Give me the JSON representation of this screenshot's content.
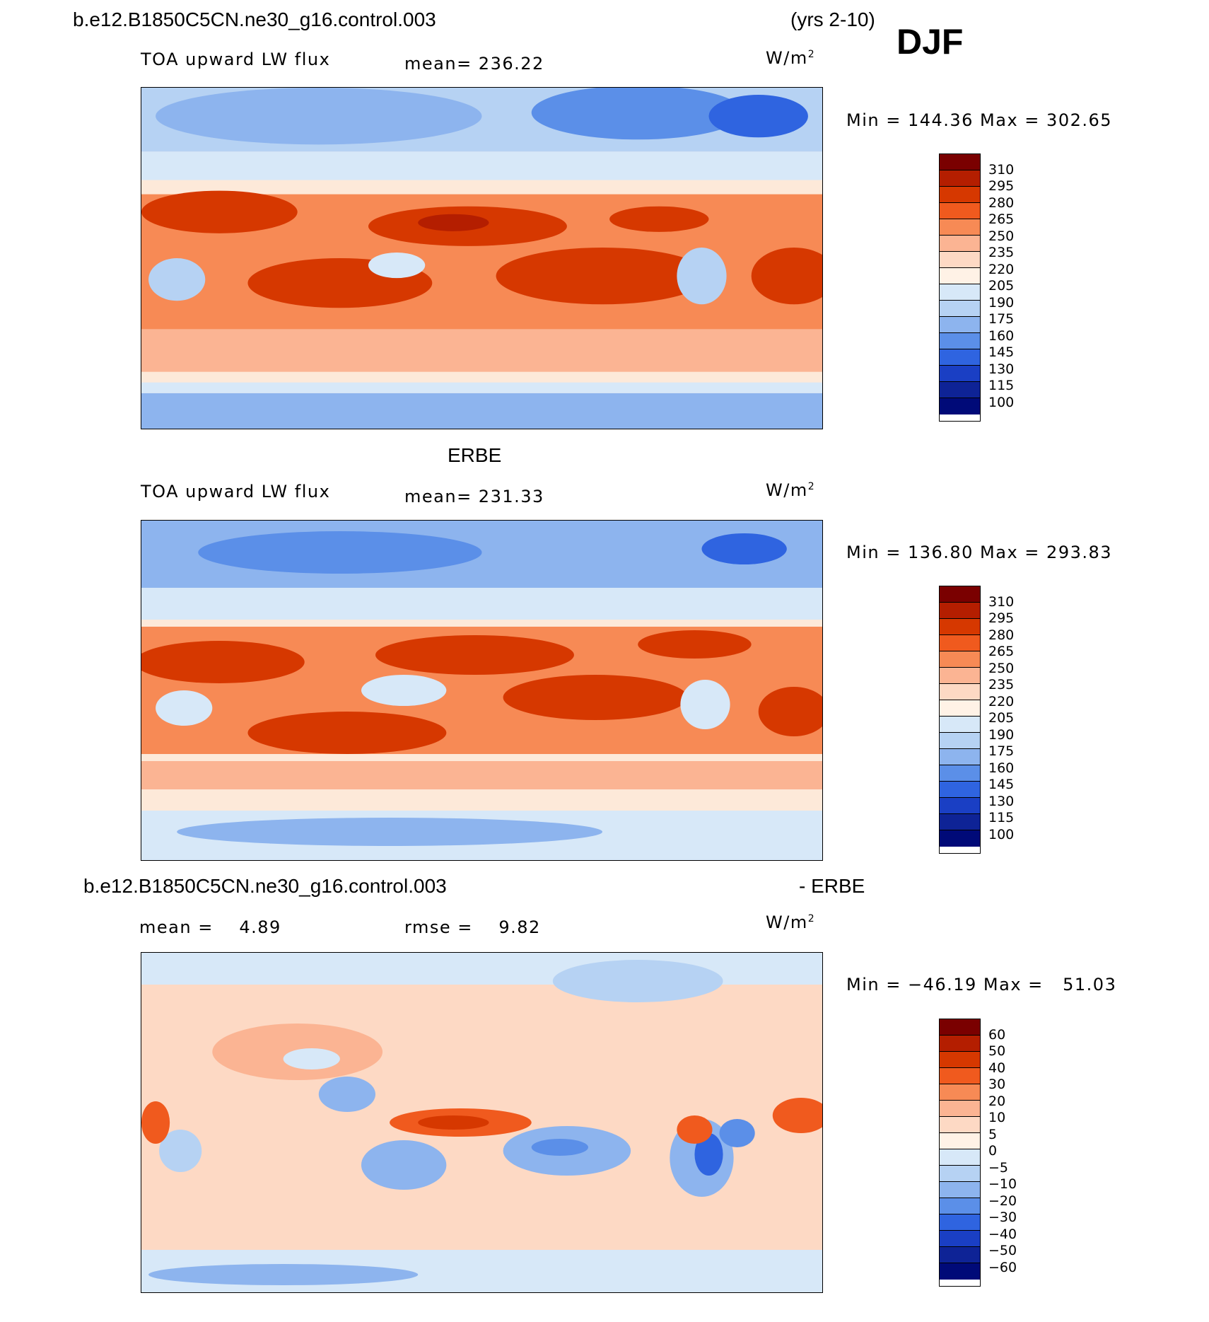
{
  "header": {
    "case_name": "b.e12.B1850C5CN.ne30_g16.control.003",
    "years": "(yrs 2-10)",
    "season": "DJF"
  },
  "panels": [
    {
      "title": "",
      "variable": "TOA upward LW flux",
      "stat1": "mean= 236.22",
      "stat2": "",
      "units": "W/m",
      "units_sup": "2",
      "minmax": "Min = 144.36 Max = 302.65"
    },
    {
      "title": "ERBE",
      "variable": "TOA upward LW flux",
      "stat1": "mean= 231.33",
      "stat2": "",
      "units": "W/m",
      "units_sup": "2",
      "minmax": "Min = 136.80 Max = 293.83"
    },
    {
      "title": "b.e12.B1850C5CN.ne30_g16.control.003",
      "title_right": "- ERBE",
      "variable": "",
      "stat1": "mean =    4.89",
      "stat2": "rmse =    9.82",
      "units": "W/m",
      "units_sup": "2",
      "minmax": "Min = −46.19 Max =   51.03"
    }
  ],
  "colorbar_abs": {
    "levels": [
      "310",
      "295",
      "280",
      "265",
      "250",
      "235",
      "220",
      "205",
      "190",
      "175",
      "160",
      "145",
      "130",
      "115",
      "100"
    ],
    "colors": [
      "#7a0000",
      "#b41e00",
      "#d63800",
      "#f05a1e",
      "#f78a55",
      "#fbb493",
      "#fdd9c4",
      "#fff2e6",
      "#d7e8f8",
      "#b6d2f3",
      "#8db4ee",
      "#5b8fe8",
      "#2f64e0",
      "#1a3fc4",
      "#0e2396",
      "#000a78"
    ]
  },
  "colorbar_diff": {
    "levels": [
      "60",
      "50",
      "40",
      "30",
      "20",
      "10",
      "5",
      "0",
      "−5",
      "−10",
      "−20",
      "−30",
      "−40",
      "−50",
      "−60"
    ],
    "colors": [
      "#7a0000",
      "#b41e00",
      "#d63800",
      "#f05a1e",
      "#f78a55",
      "#fbb493",
      "#fdd9c4",
      "#fff2e6",
      "#d7e8f8",
      "#b6d2f3",
      "#8db4ee",
      "#5b8fe8",
      "#2f64e0",
      "#1a3fc4",
      "#0e2396",
      "#000a78"
    ]
  }
}
